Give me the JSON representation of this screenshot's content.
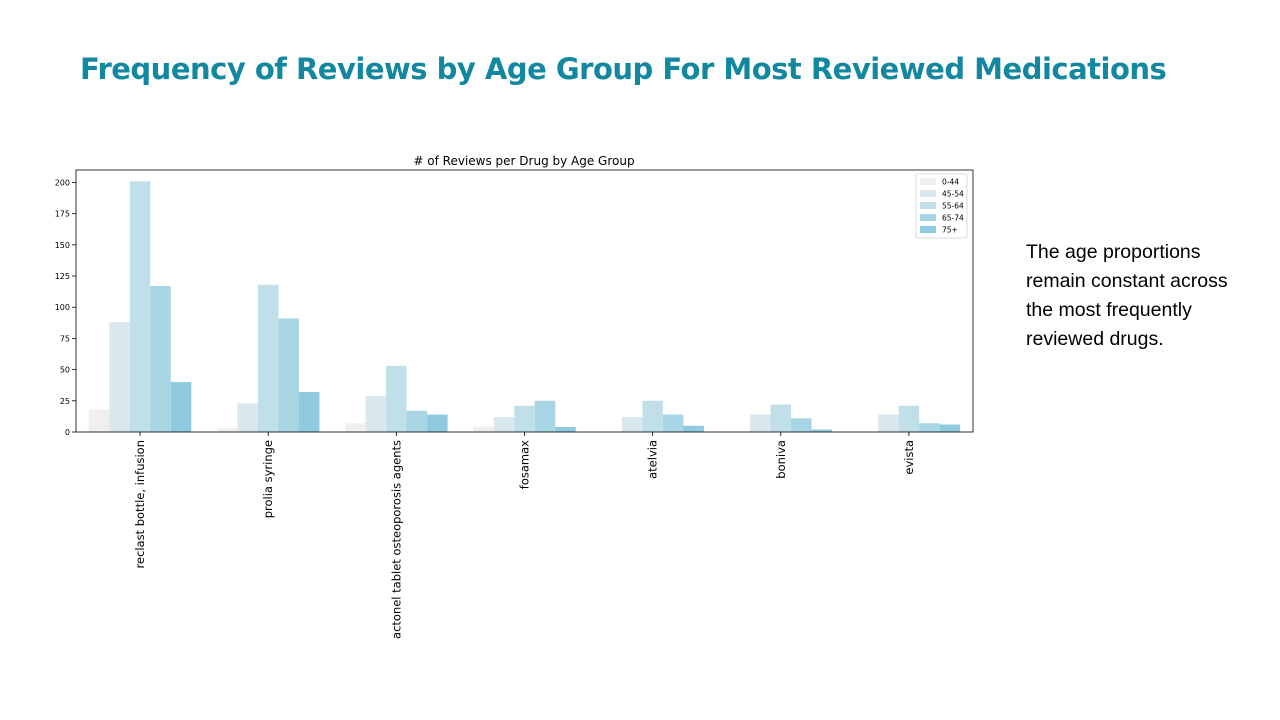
{
  "slide": {
    "title": "Frequency of Reviews by Age Group For Most Reviewed Medications",
    "note": "The age proportions remain constant across the most frequently reviewed drugs."
  },
  "colors": {
    "title": "#1287a0",
    "series": [
      "#efefef",
      "#d9e7ee",
      "#c0dfe8",
      "#a8d5e3",
      "#8fcade"
    ]
  },
  "chart_data": {
    "type": "bar",
    "title": "# of Reviews per Drug by Age Group",
    "xlabel": "",
    "ylabel": "",
    "categories": [
      "reclast bottle, infusion",
      "prolia syringe",
      "actonel tablet osteoporosis agents",
      "fosamax",
      "atelvia",
      "boniva",
      "evista"
    ],
    "series": [
      {
        "name": "0-44",
        "values": [
          18,
          3,
          7,
          4,
          0,
          0,
          0
        ]
      },
      {
        "name": "45-54",
        "values": [
          88,
          23,
          29,
          12,
          12,
          14,
          14
        ]
      },
      {
        "name": "55-64",
        "values": [
          201,
          118,
          53,
          21,
          25,
          22,
          21
        ]
      },
      {
        "name": "65-74",
        "values": [
          117,
          91,
          17,
          25,
          14,
          11,
          7
        ]
      },
      {
        "name": "75+",
        "values": [
          40,
          32,
          14,
          4,
          5,
          2,
          6
        ]
      }
    ],
    "ylim": [
      0,
      210
    ],
    "yticks": [
      0,
      25,
      50,
      75,
      100,
      125,
      150,
      175,
      200
    ],
    "grid": false,
    "legend_position": "top-right"
  }
}
